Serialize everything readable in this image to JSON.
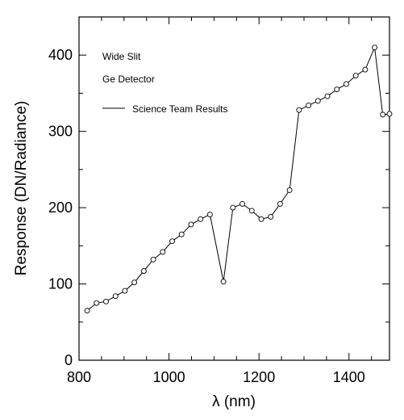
{
  "chart_data": {
    "type": "line",
    "title": "",
    "xlabel": "λ (nm)",
    "ylabel": "Response (DN/Radiance)",
    "xlim": [
      800,
      1490
    ],
    "ylim": [
      0,
      450
    ],
    "xticks": [
      800,
      1000,
      1200,
      1400
    ],
    "yticks": [
      0,
      100,
      200,
      300,
      400
    ],
    "annotations": [
      "Wide Slit",
      "Ge Detector"
    ],
    "grid": false,
    "legend_position": "top-left",
    "series": [
      {
        "name": "Science Team Results",
        "marker": "circle",
        "x": [
          818,
          839,
          860,
          881,
          902,
          923,
          944,
          965,
          986,
          1007,
          1028,
          1049,
          1070,
          1091,
          1121,
          1142,
          1163,
          1184,
          1205,
          1226,
          1247,
          1268,
          1289,
          1310,
          1331,
          1352,
          1373,
          1394,
          1415,
          1436,
          1457,
          1475,
          1490
        ],
        "y": [
          65,
          75,
          77,
          84,
          91,
          102,
          117,
          132,
          142,
          156,
          165,
          178,
          185,
          191,
          103,
          200,
          205,
          196,
          185,
          188,
          205,
          223,
          328,
          334,
          340,
          346,
          355,
          362,
          373,
          381,
          410,
          322,
          323
        ]
      }
    ]
  }
}
